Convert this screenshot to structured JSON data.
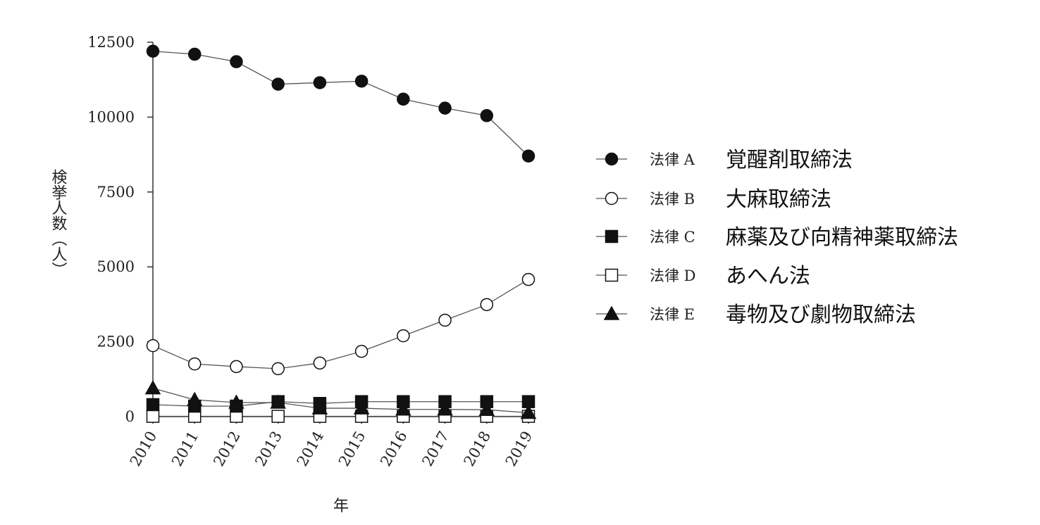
{
  "chart_data": {
    "type": "line",
    "xlabel": "年",
    "ylabel": "検挙人数（人）",
    "ylim": [
      0,
      12500
    ],
    "yticks": [
      0,
      2500,
      5000,
      7500,
      10000,
      12500
    ],
    "x": [
      2010,
      2011,
      2012,
      2013,
      2014,
      2015,
      2016,
      2017,
      2018,
      2019
    ],
    "grid": false,
    "legend_position": "right",
    "series": [
      {
        "name": "法律 A",
        "description": "覚醒剤取締法",
        "marker": "filled-circle",
        "values": [
          12200,
          12100,
          11850,
          11100,
          11150,
          11200,
          10600,
          10300,
          10050,
          8700
        ]
      },
      {
        "name": "法律 B",
        "description": "大麻取締法",
        "marker": "open-circle",
        "values": [
          2370,
          1760,
          1670,
          1600,
          1790,
          2180,
          2700,
          3220,
          3740,
          4580
        ]
      },
      {
        "name": "法律 C",
        "description": "麻薬及び向精神薬取締法",
        "marker": "filled-square",
        "values": [
          400,
          350,
          350,
          500,
          440,
          500,
          500,
          500,
          500,
          500
        ]
      },
      {
        "name": "法律 D",
        "description": "あへん法",
        "marker": "open-square",
        "values": [
          10,
          10,
          10,
          10,
          10,
          10,
          10,
          10,
          10,
          10
        ]
      },
      {
        "name": "法律 E",
        "description": "毒物及び劇物取締法",
        "marker": "filled-triangle",
        "values": [
          950,
          560,
          470,
          470,
          280,
          280,
          240,
          240,
          230,
          130
        ]
      }
    ]
  }
}
